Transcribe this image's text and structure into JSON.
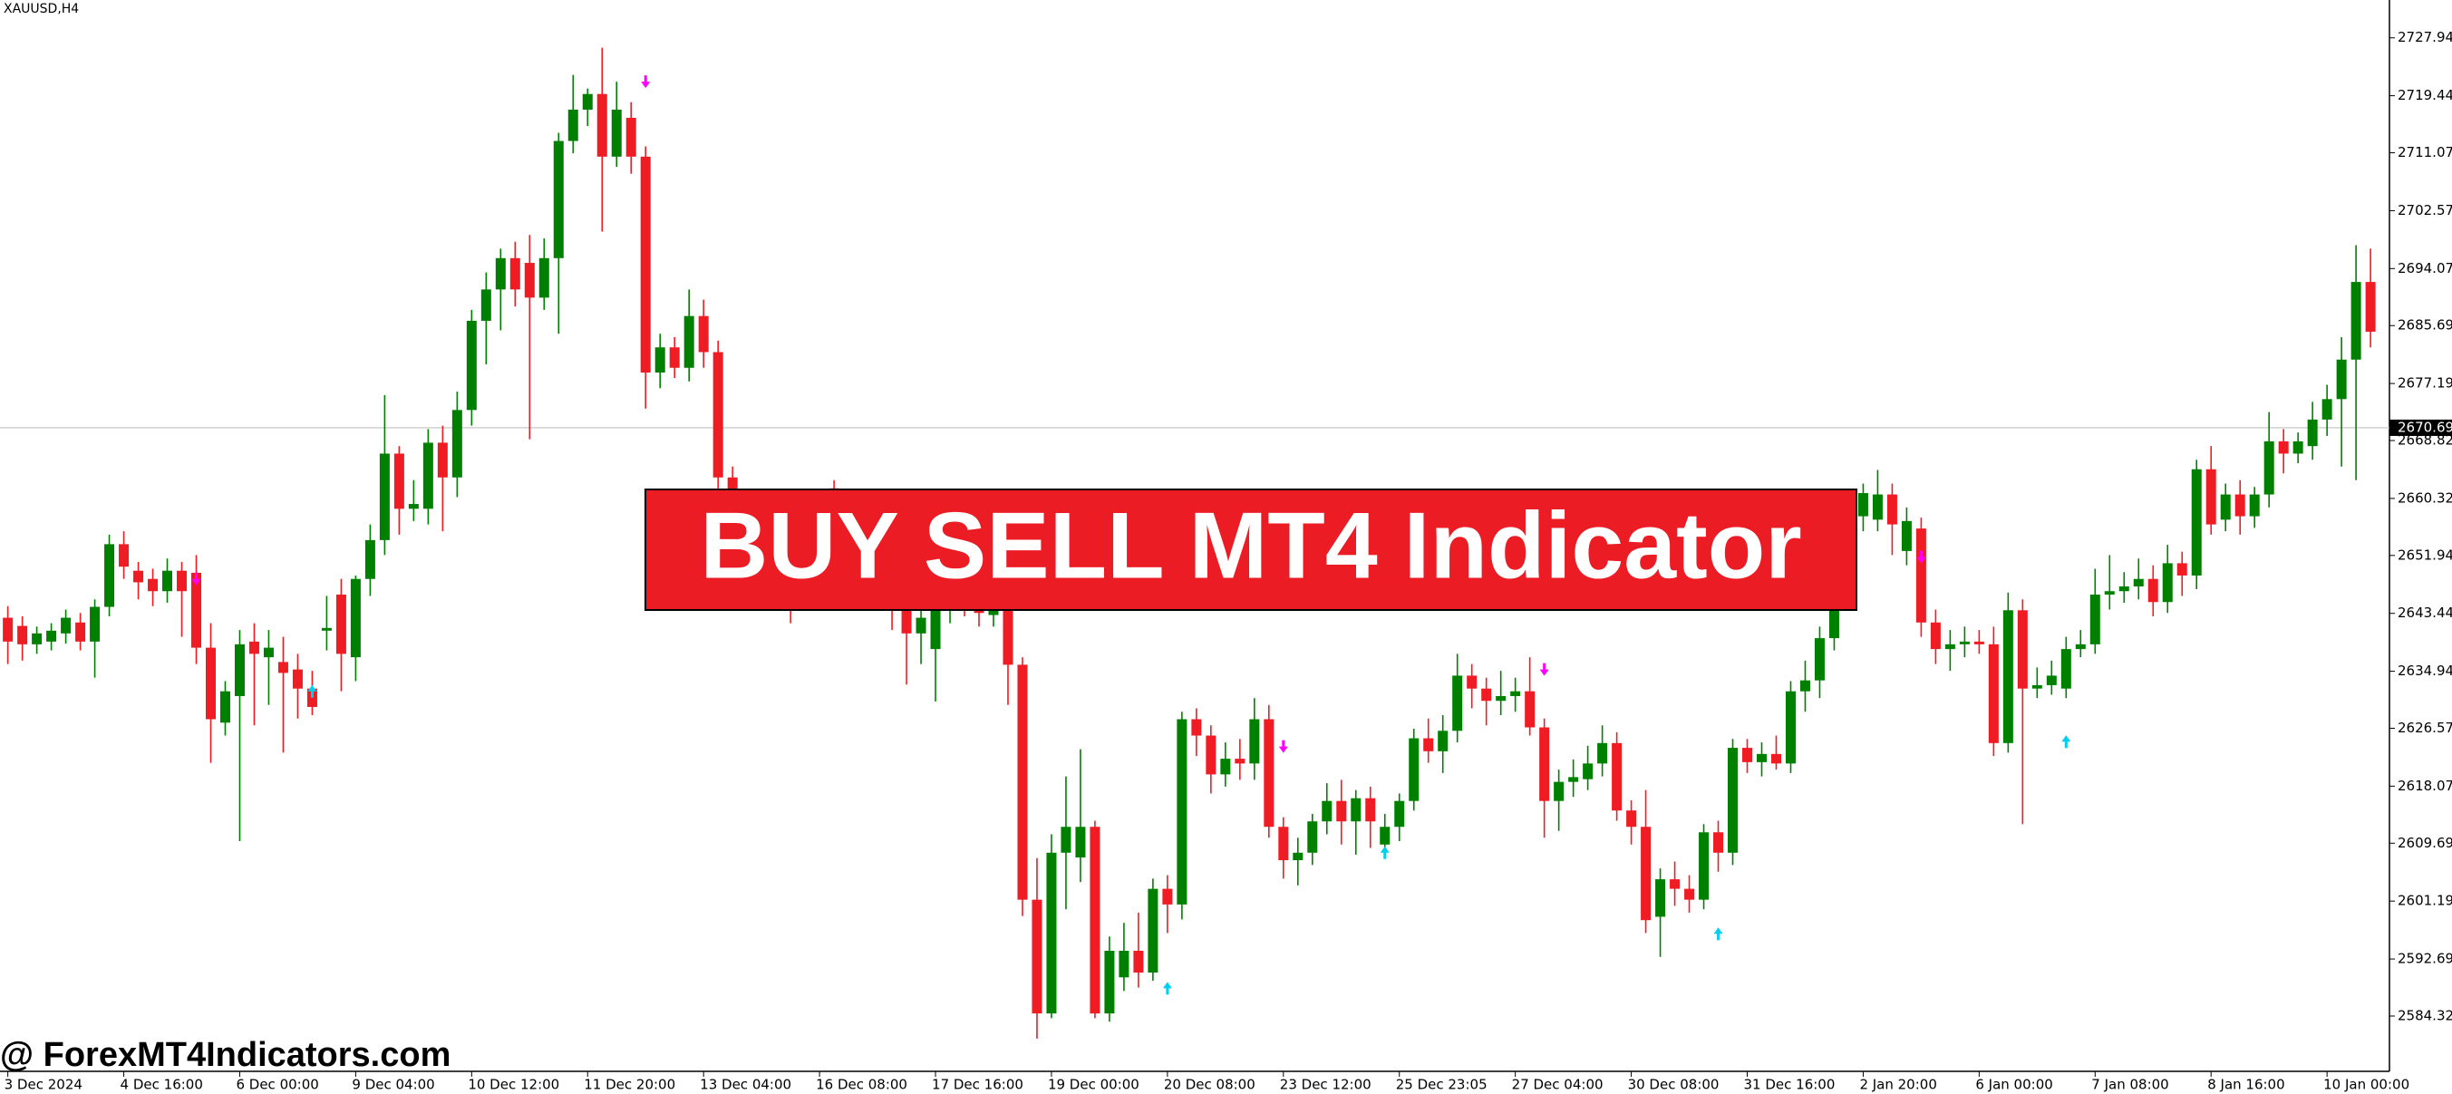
{
  "chart_data": {
    "type": "candlestick",
    "symbol_label": "XAUUSD,H4",
    "banner": "BUY SELL MT4 Indicator",
    "watermark": "@ ForexMT4Indicators.com",
    "up_color": "#008000",
    "down_color": "#f01c24",
    "sell_color": "#ff00ff",
    "buy_color": "#00cfee",
    "ylim": [
      2576.2,
      2733.5
    ],
    "yticks": [
      2727.945,
      2719.445,
      {
        "value": 2711.07,
        "label": "2711.070"
      },
      {
        "value": 2702.57,
        "label": "2702.570"
      },
      {
        "value": 2694.07,
        "label": "2694.070"
      },
      2685.695,
      2677.195,
      {
        "value": 2668.82,
        "label": "2668.820"
      },
      {
        "value": 2660.32,
        "label": "2660.320"
      },
      2651.945,
      2643.445,
      2634.945,
      {
        "value": 2626.57,
        "label": "2626.570"
      },
      {
        "value": 2618.07,
        "label": "2618.070"
      },
      2609.695,
      2601.195,
      2592.695,
      {
        "value": 2584.32,
        "label": "2584.320"
      }
    ],
    "price_line": 2670.694,
    "xticks": [
      {
        "value": 0,
        "label": "3 Dec 2024"
      },
      {
        "value": 8,
        "label": "4 Dec 16:00"
      },
      {
        "value": 16,
        "label": "6 Dec 00:00"
      },
      {
        "value": 24,
        "label": "9 Dec 04:00"
      },
      {
        "value": 32,
        "label": "10 Dec 12:00"
      },
      {
        "value": 40,
        "label": "11 Dec 20:00"
      },
      {
        "value": 48,
        "label": "13 Dec 04:00"
      },
      {
        "value": 56,
        "label": "16 Dec 08:00"
      },
      {
        "value": 64,
        "label": "17 Dec 16:00"
      },
      {
        "value": 72,
        "label": "19 Dec 00:00"
      },
      {
        "value": 80,
        "label": "20 Dec 08:00"
      },
      {
        "value": 88,
        "label": "23 Dec 12:00"
      },
      {
        "value": 96,
        "label": "25 Dec 23:05"
      },
      {
        "value": 104,
        "label": "27 Dec 04:00"
      },
      {
        "value": 112,
        "label": "30 Dec 08:00"
      },
      {
        "value": 120,
        "label": "31 Dec 16:00"
      },
      {
        "value": 128,
        "label": "2 Jan 20:00"
      },
      {
        "value": 136,
        "label": "6 Jan 00:00"
      },
      {
        "value": 144,
        "label": "7 Jan 08:00"
      },
      {
        "value": 152,
        "label": "8 Jan 16:00"
      },
      {
        "value": 160,
        "label": "10 Jan 00:00"
      }
    ],
    "ohlc": [
      [
        2642.8,
        2644.5,
        2636.0,
        2639.3
      ],
      [
        2641.6,
        2643.0,
        2636.5,
        2638.9
      ],
      [
        2638.9,
        2641.5,
        2637.5,
        2640.5
      ],
      [
        2639.3,
        2642.0,
        2638.0,
        2640.9
      ],
      [
        2640.5,
        2644.0,
        2639.0,
        2642.8
      ],
      [
        2642.1,
        2643.5,
        2638.0,
        2639.3
      ],
      [
        2639.3,
        2645.5,
        2634.0,
        2644.4
      ],
      [
        2644.4,
        2655.0,
        2643.0,
        2653.6
      ],
      [
        2653.6,
        2655.5,
        2648.5,
        2650.3
      ],
      [
        2649.7,
        2651.0,
        2645.5,
        2648.0
      ],
      [
        2648.5,
        2650.0,
        2644.5,
        2646.7
      ],
      [
        2646.7,
        2651.5,
        2645.0,
        2649.7
      ],
      [
        2649.7,
        2651.0,
        2640.0,
        2646.7
      ],
      [
        2649.4,
        2652.0,
        2636.0,
        2638.4
      ],
      [
        2638.4,
        2642.0,
        2621.5,
        2627.9
      ],
      [
        2627.4,
        2633.5,
        2625.5,
        2632.0
      ],
      [
        2631.3,
        2641.0,
        2610.0,
        2638.9
      ],
      [
        2639.3,
        2642.0,
        2627.0,
        2637.5
      ],
      [
        2637.0,
        2641.0,
        2630.0,
        2638.4
      ],
      [
        2636.3,
        2640.0,
        2623.0,
        2634.7
      ],
      [
        2635.2,
        2637.5,
        2628.0,
        2632.4
      ],
      [
        2632.4,
        2635.0,
        2628.5,
        2629.7
      ],
      [
        2640.9,
        2646.0,
        2638.0,
        2641.3
      ],
      [
        2646.2,
        2648.5,
        2632.0,
        2637.5
      ],
      [
        2637.0,
        2649.0,
        2633.5,
        2648.5
      ],
      [
        2648.5,
        2656.5,
        2646.0,
        2654.2
      ],
      [
        2654.2,
        2675.5,
        2652.0,
        2666.9
      ],
      [
        2666.9,
        2668.0,
        2655.0,
        2658.8
      ],
      [
        2658.8,
        2663.0,
        2657.0,
        2659.5
      ],
      [
        2658.8,
        2670.5,
        2656.5,
        2668.5
      ],
      [
        2668.5,
        2671.0,
        2655.5,
        2663.4
      ],
      [
        2663.4,
        2676.0,
        2660.5,
        2673.3
      ],
      [
        2673.3,
        2688.0,
        2671.0,
        2686.4
      ],
      [
        2686.4,
        2693.5,
        2680.0,
        2691.0
      ],
      [
        2691.0,
        2697.0,
        2685.0,
        2695.6
      ],
      [
        2695.6,
        2698.0,
        2688.5,
        2691.0
      ],
      [
        2694.9,
        2699.0,
        2669.0,
        2689.8
      ],
      [
        2689.8,
        2698.5,
        2688.0,
        2695.6
      ],
      [
        2695.6,
        2714.0,
        2684.5,
        2712.8
      ],
      [
        2712.8,
        2722.5,
        2711.0,
        2717.4
      ],
      [
        2717.4,
        2720.5,
        2715.0,
        2719.7
      ],
      [
        2719.7,
        2726.5,
        2699.5,
        2710.5
      ],
      [
        2710.5,
        2721.5,
        2709.0,
        2717.4
      ],
      [
        2716.2,
        2718.5,
        2708.0,
        2710.5
      ],
      [
        2710.5,
        2712.0,
        2673.5,
        2678.8
      ],
      [
        2678.8,
        2684.5,
        2676.5,
        2682.5
      ],
      [
        2682.5,
        2684.0,
        2678.0,
        2679.5
      ],
      [
        2679.5,
        2691.0,
        2677.5,
        2687.1
      ],
      [
        2687.1,
        2689.5,
        2679.5,
        2681.8
      ],
      [
        2681.8,
        2683.5,
        2661.5,
        2663.4
      ],
      [
        2663.4,
        2665.0,
        2655.0,
        2657.7
      ],
      [
        2657.7,
        2659.0,
        2650.0,
        2651.9
      ],
      [
        2651.9,
        2656.0,
        2649.5,
        2654.2
      ],
      [
        2654.2,
        2655.5,
        2648.0,
        2650.8
      ],
      [
        2650.8,
        2652.0,
        2642.0,
        2647.4
      ],
      [
        2647.4,
        2651.0,
        2645.0,
        2649.7
      ],
      [
        2649.7,
        2658.0,
        2648.0,
        2654.2
      ],
      [
        2661.8,
        2663.0,
        2653.0,
        2655.4
      ],
      [
        2655.4,
        2657.0,
        2649.5,
        2651.9
      ],
      [
        2651.9,
        2657.0,
        2650.0,
        2655.4
      ],
      [
        2655.4,
        2657.0,
        2646.0,
        2648.5
      ],
      [
        2648.5,
        2650.0,
        2641.0,
        2643.9
      ],
      [
        2643.9,
        2645.0,
        2633.0,
        2640.5
      ],
      [
        2640.5,
        2644.5,
        2636.0,
        2642.8
      ],
      [
        2638.2,
        2645.5,
        2630.5,
        2643.9
      ],
      [
        2643.9,
        2649.0,
        2642.0,
        2647.4
      ],
      [
        2647.4,
        2649.0,
        2643.0,
        2645.1
      ],
      [
        2645.1,
        2646.5,
        2641.5,
        2643.5
      ],
      [
        2643.2,
        2647.0,
        2641.5,
        2645.1
      ],
      [
        2645.1,
        2647.5,
        2630.0,
        2635.9
      ],
      [
        2635.9,
        2637.0,
        2599.0,
        2601.4
      ],
      [
        2601.4,
        2607.5,
        2581.0,
        2584.7
      ],
      [
        2584.7,
        2611.0,
        2584.0,
        2608.3
      ],
      [
        2608.3,
        2619.5,
        2600.0,
        2612.1
      ],
      [
        2607.6,
        2623.5,
        2604.0,
        2612.1
      ],
      [
        2612.1,
        2613.0,
        2584.0,
        2584.7
      ],
      [
        2584.7,
        2596.0,
        2583.5,
        2593.9
      ],
      [
        2590.0,
        2598.0,
        2588.0,
        2593.9
      ],
      [
        2593.9,
        2599.5,
        2588.5,
        2590.7
      ],
      [
        2590.7,
        2604.5,
        2589.5,
        2603.0
      ],
      [
        2603.0,
        2605.0,
        2596.5,
        2600.7
      ],
      [
        2600.7,
        2629.0,
        2598.5,
        2627.9
      ],
      [
        2627.9,
        2629.5,
        2622.5,
        2625.5
      ],
      [
        2625.5,
        2627.0,
        2617.0,
        2619.8
      ],
      [
        2619.8,
        2624.5,
        2618.0,
        2622.1
      ],
      [
        2622.1,
        2625.0,
        2619.0,
        2621.4
      ],
      [
        2621.4,
        2631.0,
        2619.0,
        2627.9
      ],
      [
        2627.9,
        2630.0,
        2610.5,
        2612.1
      ],
      [
        2612.1,
        2613.5,
        2604.5,
        2607.2
      ],
      [
        2607.2,
        2610.5,
        2603.5,
        2608.3
      ],
      [
        2608.3,
        2614.0,
        2606.5,
        2612.9
      ],
      [
        2612.9,
        2618.5,
        2611.0,
        2615.9
      ],
      [
        2615.9,
        2619.0,
        2609.5,
        2612.9
      ],
      [
        2612.9,
        2617.5,
        2608.0,
        2616.3
      ],
      [
        2616.3,
        2618.0,
        2609.0,
        2612.9
      ],
      [
        2609.5,
        2614.0,
        2607.5,
        2612.1
      ],
      [
        2612.1,
        2617.0,
        2610.0,
        2615.9
      ],
      [
        2615.9,
        2626.5,
        2614.5,
        2625.1
      ],
      [
        2625.1,
        2628.0,
        2621.5,
        2623.2
      ],
      [
        2623.2,
        2628.5,
        2620.0,
        2626.2
      ],
      [
        2626.2,
        2637.5,
        2624.5,
        2634.3
      ],
      [
        2634.3,
        2636.0,
        2629.5,
        2632.4
      ],
      [
        2632.4,
        2634.0,
        2627.0,
        2630.6
      ],
      [
        2630.6,
        2635.0,
        2628.5,
        2631.3
      ],
      [
        2631.3,
        2634.0,
        2629.0,
        2632.0
      ],
      [
        2632.0,
        2637.0,
        2625.5,
        2626.7
      ],
      [
        2626.7,
        2628.0,
        2610.5,
        2615.9
      ],
      [
        2615.9,
        2620.5,
        2611.5,
        2618.7
      ],
      [
        2618.7,
        2622.0,
        2616.5,
        2619.4
      ],
      [
        2619.1,
        2624.0,
        2617.5,
        2621.4
      ],
      [
        2621.4,
        2627.0,
        2619.5,
        2624.4
      ],
      [
        2624.4,
        2626.0,
        2613.0,
        2614.5
      ],
      [
        2614.5,
        2616.0,
        2609.5,
        2612.1
      ],
      [
        2612.1,
        2617.5,
        2596.5,
        2598.4
      ],
      [
        2598.9,
        2606.0,
        2593.0,
        2604.4
      ],
      [
        2604.4,
        2607.0,
        2600.5,
        2603.0
      ],
      [
        2603.0,
        2605.0,
        2599.5,
        2601.4
      ],
      [
        2601.4,
        2612.5,
        2600.0,
        2611.3
      ],
      [
        2611.3,
        2613.0,
        2605.5,
        2608.3
      ],
      [
        2608.3,
        2625.0,
        2606.5,
        2623.7
      ],
      [
        2623.7,
        2625.0,
        2620.0,
        2621.6
      ],
      [
        2621.6,
        2624.5,
        2619.5,
        2622.8
      ],
      [
        2622.8,
        2625.5,
        2620.5,
        2621.4
      ],
      [
        2621.4,
        2633.5,
        2620.0,
        2632.0
      ],
      [
        2632.0,
        2636.5,
        2629.0,
        2633.6
      ],
      [
        2633.6,
        2641.5,
        2631.0,
        2639.8
      ],
      [
        2639.8,
        2652.0,
        2638.0,
        2650.8
      ],
      [
        2650.8,
        2659.0,
        2649.0,
        2657.7
      ],
      [
        2657.7,
        2662.5,
        2655.5,
        2661.1
      ],
      [
        2657.2,
        2664.5,
        2655.5,
        2660.9
      ],
      [
        2660.9,
        2662.5,
        2652.0,
        2656.5
      ],
      [
        2652.6,
        2659.0,
        2650.5,
        2657.0
      ],
      [
        2655.9,
        2657.5,
        2640.0,
        2642.1
      ],
      [
        2642.1,
        2644.0,
        2636.0,
        2638.2
      ],
      [
        2638.2,
        2641.0,
        2635.0,
        2638.9
      ],
      [
        2638.9,
        2641.5,
        2637.0,
        2639.3
      ],
      [
        2639.3,
        2641.0,
        2637.5,
        2638.9
      ],
      [
        2638.9,
        2641.5,
        2622.5,
        2624.4
      ],
      [
        2624.4,
        2646.5,
        2623.0,
        2643.9
      ],
      [
        2643.9,
        2645.5,
        2612.5,
        2632.4
      ],
      [
        2632.4,
        2635.5,
        2631.0,
        2632.9
      ],
      [
        2632.9,
        2636.5,
        2631.5,
        2634.3
      ],
      [
        2632.4,
        2640.0,
        2631.0,
        2638.2
      ],
      [
        2638.2,
        2641.0,
        2637.0,
        2638.9
      ],
      [
        2638.9,
        2650.0,
        2637.5,
        2646.2
      ],
      [
        2646.2,
        2652.0,
        2644.0,
        2646.7
      ],
      [
        2646.7,
        2649.5,
        2645.0,
        2647.4
      ],
      [
        2647.4,
        2651.5,
        2645.5,
        2648.5
      ],
      [
        2648.5,
        2650.5,
        2643.0,
        2645.1
      ],
      [
        2645.1,
        2653.5,
        2643.5,
        2650.8
      ],
      [
        2650.8,
        2652.5,
        2646.0,
        2649.0
      ],
      [
        2649.0,
        2666.0,
        2647.0,
        2664.6
      ],
      [
        2664.6,
        2668.0,
        2655.0,
        2656.5
      ],
      [
        2657.2,
        2662.5,
        2655.5,
        2660.9
      ],
      [
        2660.9,
        2663.0,
        2655.0,
        2657.7
      ],
      [
        2657.7,
        2662.0,
        2656.0,
        2660.9
      ],
      [
        2660.9,
        2673.0,
        2659.0,
        2668.7
      ],
      [
        2668.7,
        2670.5,
        2664.0,
        2666.9
      ],
      [
        2666.9,
        2670.0,
        2665.5,
        2668.7
      ],
      [
        2668.0,
        2674.5,
        2666.0,
        2671.9
      ],
      [
        2671.9,
        2677.0,
        2669.5,
        2674.9
      ],
      [
        2674.9,
        2684.0,
        2665.0,
        2680.7
      ],
      [
        2680.7,
        2697.5,
        2663.0,
        2692.1
      ],
      [
        2692.1,
        2697.0,
        2682.5,
        2684.8
      ]
    ],
    "sell_signals": [
      {
        "index": 13,
        "price": 2648.5
      },
      {
        "index": 44,
        "price": 2721.5
      },
      {
        "index": 88,
        "price": 2623.9
      },
      {
        "index": 106,
        "price": 2635.2
      },
      {
        "index": 132,
        "price": 2651.7
      }
    ],
    "buy_signals": [
      {
        "index": 21,
        "price": 2632.0
      },
      {
        "index": 80,
        "price": 2588.4
      },
      {
        "index": 95,
        "price": 2608.3
      },
      {
        "index": 118,
        "price": 2596.4
      },
      {
        "index": 142,
        "price": 2624.6
      }
    ]
  }
}
